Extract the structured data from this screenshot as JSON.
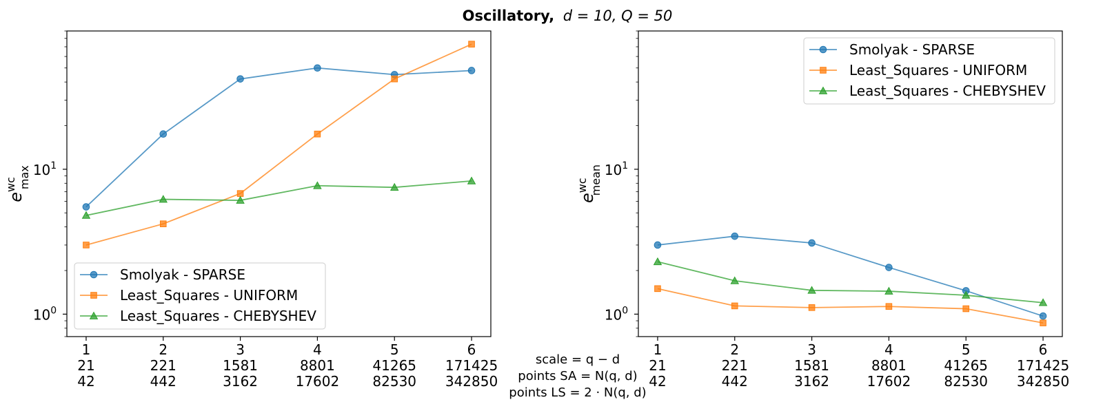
{
  "figure": {
    "title_bold": "Oscillatory,",
    "title_math": "d = 10, Q = 50"
  },
  "chart_data": [
    {
      "type": "line",
      "y_scale": "log",
      "ylim": [
        0.7,
        90
      ],
      "ylabel_base": "e",
      "ylabel_sup": "wc",
      "ylabel_sub": "max",
      "x": [
        1,
        2,
        3,
        4,
        5,
        6
      ],
      "x_tick_rows": [
        [
          "1",
          "2",
          "3",
          "4",
          "5",
          "6"
        ],
        [
          "21",
          "221",
          "1581",
          "8801",
          "41265",
          "171425"
        ],
        [
          "42",
          "442",
          "3162",
          "17602",
          "82530",
          "342850"
        ]
      ],
      "y_tick_labels": [
        {
          "base": "10",
          "exp": "0",
          "value": 1
        },
        {
          "base": "10",
          "exp": "1",
          "value": 10
        }
      ],
      "legend_position": "lower-left",
      "series": [
        {
          "name": "Smolyak - SPARSE",
          "color": "#1f77b4",
          "marker": "circle",
          "values": [
            5.5,
            17.5,
            42,
            50,
            45,
            48
          ]
        },
        {
          "name": "Least_Squares - UNIFORM",
          "color": "#ff7f0e",
          "marker": "square",
          "values": [
            3.0,
            4.2,
            6.8,
            17.5,
            42,
            73
          ]
        },
        {
          "name": "Least_Squares - CHEBYSHEV",
          "color": "#2ca02c",
          "marker": "triangle",
          "values": [
            4.8,
            6.2,
            6.1,
            7.7,
            7.5,
            8.3
          ]
        }
      ]
    },
    {
      "type": "line",
      "y_scale": "log",
      "ylim": [
        0.7,
        90
      ],
      "ylabel_base": "e",
      "ylabel_sup": "wc",
      "ylabel_sub": "mean",
      "x": [
        1,
        2,
        3,
        4,
        5,
        6
      ],
      "x_tick_rows": [
        [
          "1",
          "2",
          "3",
          "4",
          "5",
          "6"
        ],
        [
          "21",
          "221",
          "1581",
          "8801",
          "41265",
          "171425"
        ],
        [
          "42",
          "442",
          "3162",
          "17602",
          "82530",
          "342850"
        ]
      ],
      "y_tick_labels": [
        {
          "base": "10",
          "exp": "0",
          "value": 1
        },
        {
          "base": "10",
          "exp": "1",
          "value": 10
        }
      ],
      "legend_position": "upper-right",
      "series": [
        {
          "name": "Smolyak - SPARSE",
          "color": "#1f77b4",
          "marker": "circle",
          "values": [
            3.0,
            3.45,
            3.1,
            2.1,
            1.45,
            0.97
          ]
        },
        {
          "name": "Least_Squares - UNIFORM",
          "color": "#ff7f0e",
          "marker": "square",
          "values": [
            1.5,
            1.14,
            1.11,
            1.13,
            1.09,
            0.87
          ]
        },
        {
          "name": "Least_Squares - CHEBYSHEV",
          "color": "#2ca02c",
          "marker": "triangle",
          "values": [
            2.3,
            1.7,
            1.46,
            1.44,
            1.35,
            1.2
          ]
        }
      ]
    }
  ],
  "center_labels": {
    "row1": "scale = q − d",
    "row2": "points SA = N(q, d)",
    "row3": "points LS = 2 · N(q, d)"
  }
}
